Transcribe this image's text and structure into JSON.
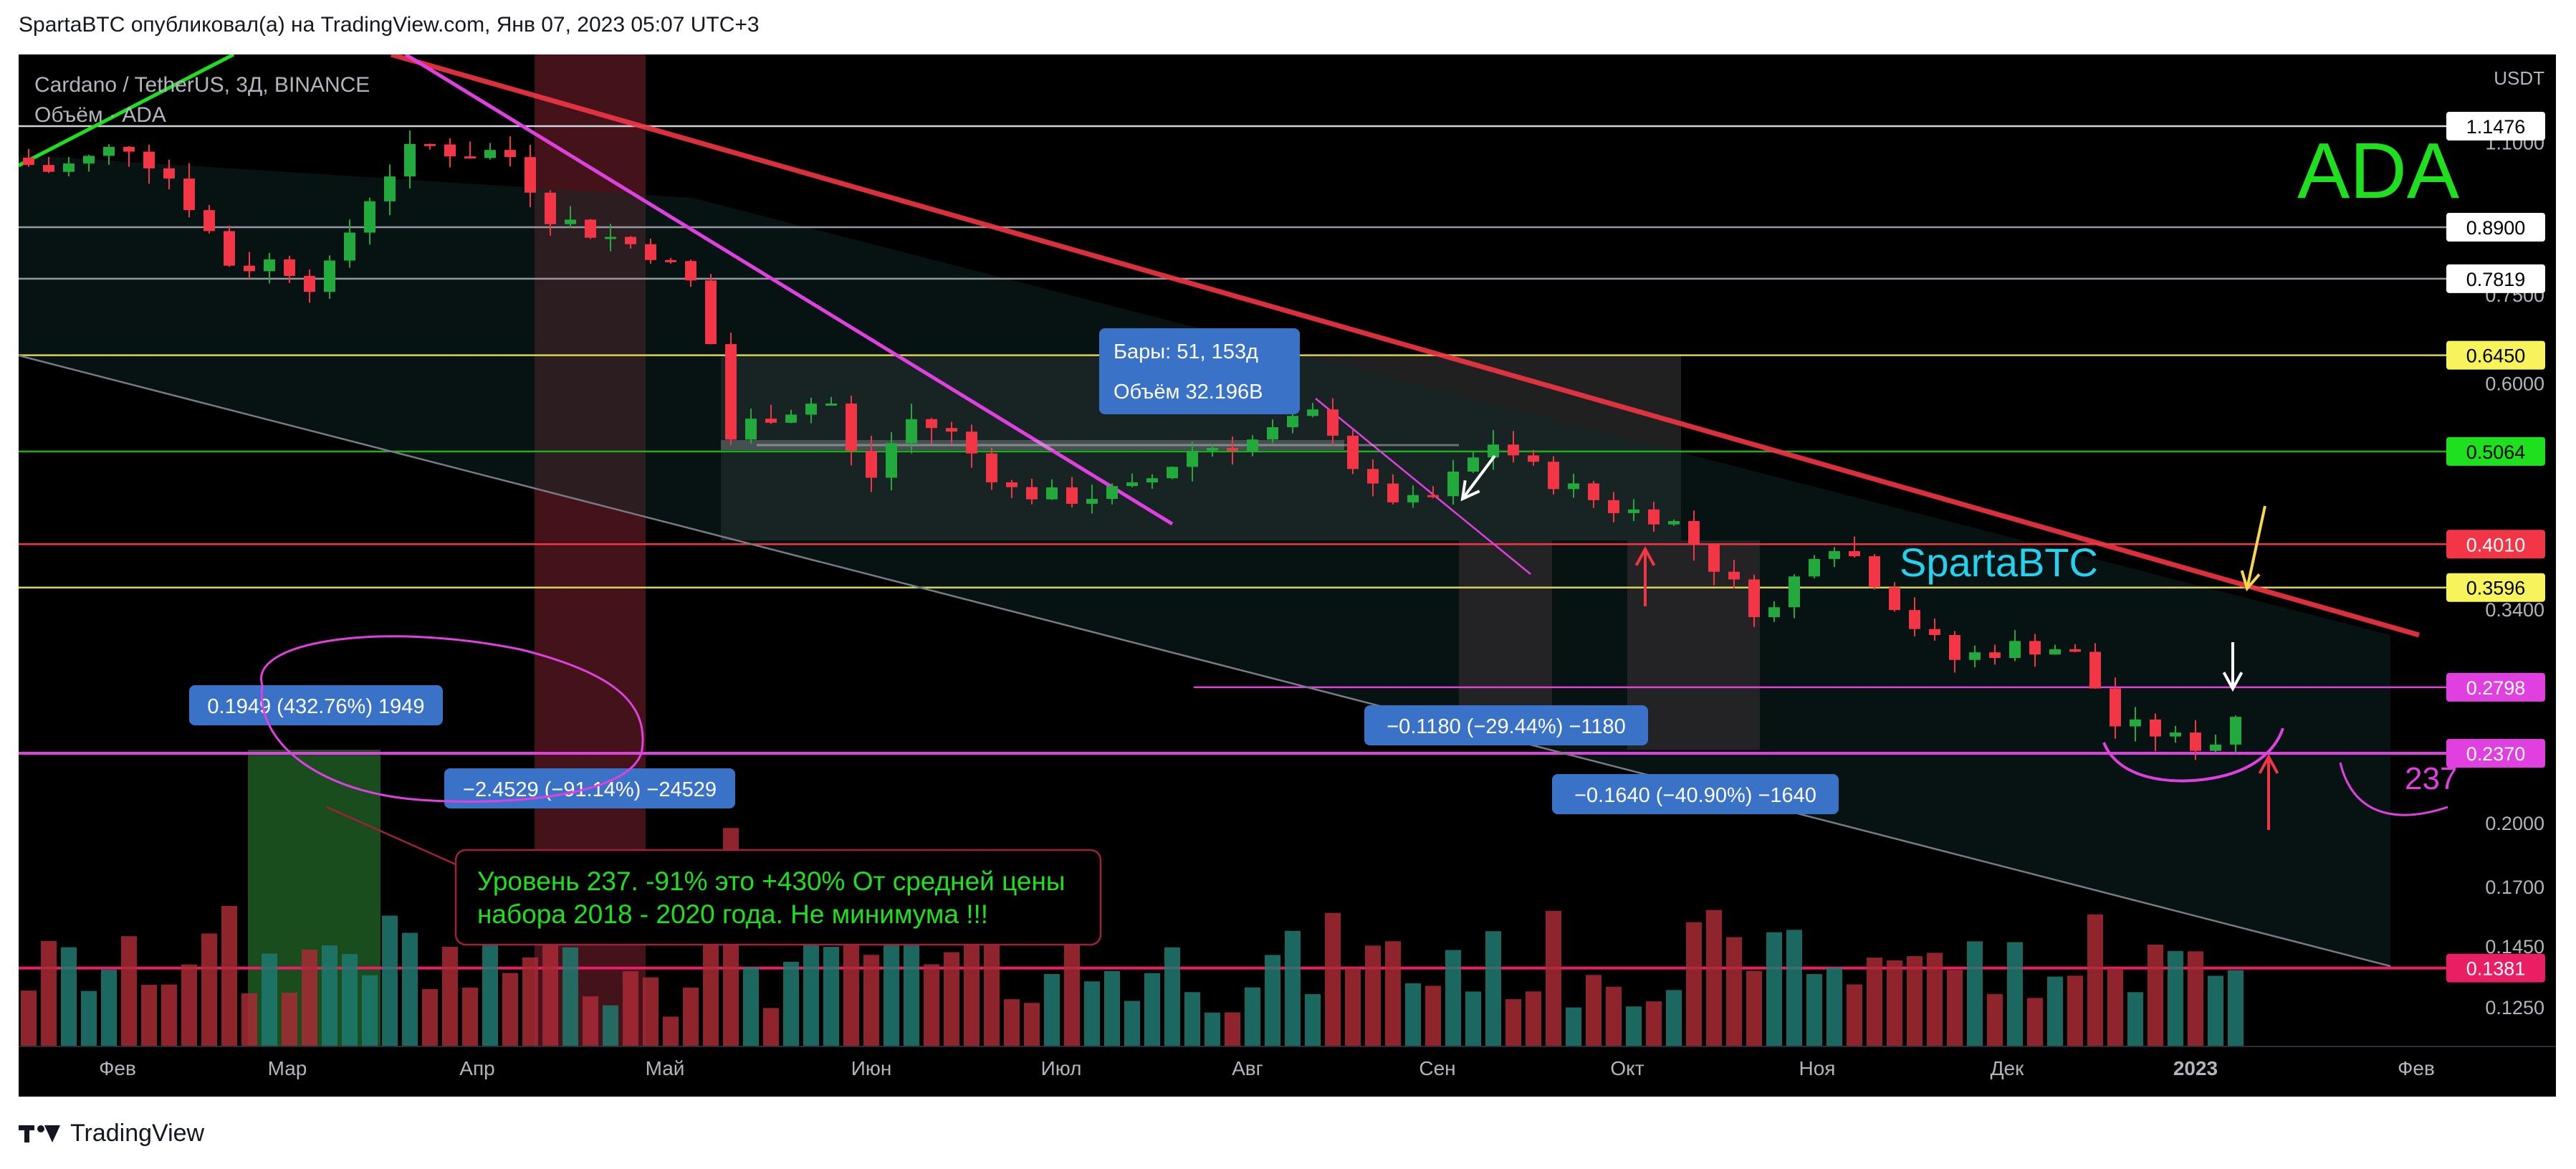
{
  "header": {
    "published_text": "SpartaBTC опубликовал(а) на TradingView.com, Янв 07, 2023 05:07 UTC+3"
  },
  "footer": {
    "brand": "TradingView"
  },
  "chart_data": {
    "type": "candlestick",
    "symbol_line": "Cardano / TetherUS, 3Д, BINANCE",
    "volume_line": "Объём · ADA",
    "big_label": "ADA",
    "author_label": "SpartaBTC",
    "currency": "USDT",
    "x_axis_labels": [
      "Фев",
      "Мар",
      "Апр",
      "Май",
      "Июн",
      "Июл",
      "Авг",
      "Сен",
      "Окт",
      "Ноя",
      "Дек",
      "2023",
      "Фев"
    ],
    "y_ticks": [
      "1.1000",
      "0.7500",
      "0.6000",
      "0.3400",
      "0.2000",
      "0.1700",
      "0.1450",
      "0.1250"
    ],
    "price_levels": [
      {
        "label": "1.1476",
        "value": 1.1476,
        "color": "#ffffff",
        "text_color": "#000000",
        "line": "#d1d4dc"
      },
      {
        "label": "0.8900",
        "value": 0.89,
        "color": "#ffffff",
        "text_color": "#000000",
        "line": "#9598a1"
      },
      {
        "label": "0.7819",
        "value": 0.7819,
        "color": "#ffffff",
        "text_color": "#000000",
        "line": "#9598a1"
      },
      {
        "label": "0.6450",
        "value": 0.645,
        "color": "#f7f35a",
        "text_color": "#000000",
        "line": "#d8d44c"
      },
      {
        "label": "0.5064",
        "value": 0.5064,
        "color": "#1fe01f",
        "text_color": "#000000",
        "line": "#1fae1f"
      },
      {
        "label": "0.4010",
        "value": 0.401,
        "color": "#f23645",
        "text_color": "#ffffff",
        "line": "#f23645"
      },
      {
        "label": "0.3596",
        "value": 0.3596,
        "color": "#f7f35a",
        "text_color": "#000000",
        "line": "#d8d44c"
      },
      {
        "label": "0.2798",
        "value": 0.2798,
        "color": "#e040e0",
        "text_color": "#ffffff",
        "line": "#e040e0"
      },
      {
        "label": "0.2370",
        "value": 0.237,
        "color": "#e040e0",
        "text_color": "#ffffff",
        "line": "#e040e0"
      },
      {
        "label": "0.1381",
        "value": 0.1381,
        "color": "#e91e63",
        "text_color": "#ffffff",
        "line": "#e91e63"
      }
    ],
    "measure_boxes": [
      {
        "lines": [
          "Бары: 51, 153д",
          "Объём 32.196B"
        ]
      },
      {
        "lines": [
          "0.1949 (432.76%) 1949"
        ]
      },
      {
        "lines": [
          "−2.4529 (−91.14%) −24529"
        ]
      },
      {
        "lines": [
          "−0.1180 (−29.44%) −1180"
        ]
      },
      {
        "lines": [
          "−0.1640 (−40.90%) −1640"
        ]
      }
    ],
    "note_box": {
      "lines": [
        "Уровень 237. -91% это +430% От средней цены",
        "набора 2018 - 2020 года. Не минимума !!!"
      ]
    },
    "hand_label": "237",
    "colors": {
      "up": "#26a69a",
      "down": "#f23645",
      "up_candle": "#22ab3c",
      "down_candle": "#f23645"
    }
  }
}
